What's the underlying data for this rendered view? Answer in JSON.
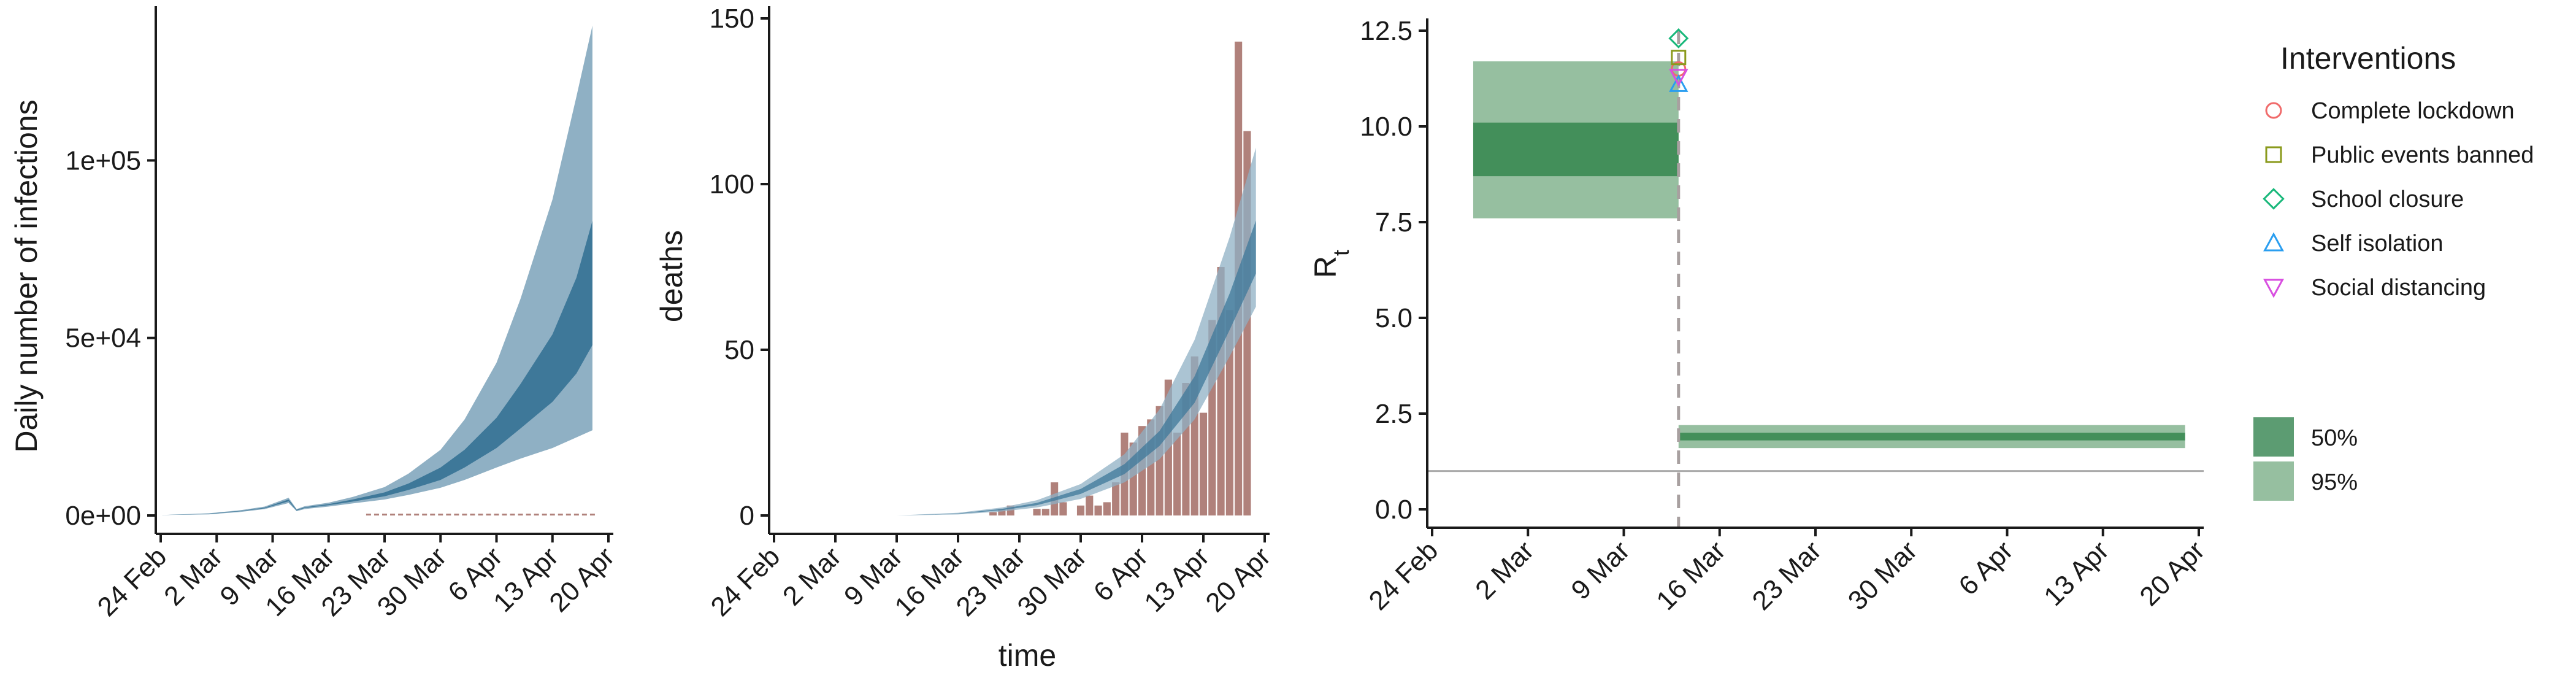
{
  "chart_data": [
    {
      "type": "area",
      "ylabel": "Daily number of infections",
      "xlabel": "",
      "x_ticks": [
        "24 Feb",
        "2 Mar",
        "9 Mar",
        "16 Mar",
        "23 Mar",
        "30 Mar",
        "6 Apr",
        "13 Apr",
        "20 Apr"
      ],
      "x_range": [
        "2020-02-24",
        "2020-04-20"
      ],
      "y_ticks": [
        "0e+00",
        "5e+04",
        "1e+05"
      ],
      "ylim": [
        0,
        140000
      ],
      "colors": {
        "band_95": "#8fb0c4",
        "band_50": "#3e7899",
        "bars": "#b0817b"
      },
      "series": [
        {
          "x": [
            "2020-02-24",
            "2020-03-01",
            "2020-03-05",
            "2020-03-08",
            "2020-03-11",
            "2020-03-12",
            "2020-03-13",
            "2020-03-16",
            "2020-03-19",
            "2020-03-23",
            "2020-03-26",
            "2020-03-30",
            "2020-04-02",
            "2020-04-06",
            "2020-04-09",
            "2020-04-13",
            "2020-04-16",
            "2020-04-18"
          ],
          "lower95": [
            100,
            300,
            1000,
            1800,
            3500,
            1200,
            1800,
            2500,
            3400,
            4500,
            5800,
            7800,
            10000,
            13500,
            16000,
            19000,
            22000,
            24000
          ],
          "lower50": [
            100,
            400,
            1200,
            2000,
            4000,
            1400,
            2100,
            2900,
            3900,
            5400,
            7200,
            10000,
            13500,
            19000,
            24500,
            32000,
            40000,
            48000
          ],
          "upper50": [
            100,
            500,
            1300,
            2200,
            4500,
            1600,
            2300,
            3200,
            4500,
            6500,
            9000,
            13500,
            18500,
            27500,
            37000,
            51000,
            67000,
            83000
          ],
          "upper95": [
            100,
            600,
            1500,
            2500,
            5000,
            1800,
            2600,
            3600,
            5200,
            8000,
            11800,
            18500,
            27000,
            43000,
            61000,
            89000,
            118000,
            138000
          ]
        }
      ],
      "bars": {
        "x_start": "2020-03-21",
        "x_end": "2020-04-18",
        "approx_value": 0
      }
    },
    {
      "type": "bar",
      "xlabel": "time",
      "ylabel": "deaths",
      "x_ticks": [
        "24 Feb",
        "2 Mar",
        "9 Mar",
        "16 Mar",
        "23 Mar",
        "30 Mar",
        "6 Apr",
        "13 Apr",
        "20 Apr"
      ],
      "x_range": [
        "2020-02-24",
        "2020-04-20"
      ],
      "y_ticks": [
        "0",
        "50",
        "100",
        "150"
      ],
      "ylim": [
        0,
        150
      ],
      "bar_dates": [
        "2020-03-20",
        "2020-03-21",
        "2020-03-22",
        "2020-03-23",
        "2020-03-24",
        "2020-03-25",
        "2020-03-26",
        "2020-03-27",
        "2020-03-28",
        "2020-03-29",
        "2020-03-30",
        "2020-03-31",
        "2020-04-01",
        "2020-04-02",
        "2020-04-03",
        "2020-04-04",
        "2020-04-05",
        "2020-04-06",
        "2020-04-07",
        "2020-04-08",
        "2020-04-09",
        "2020-04-10",
        "2020-04-11",
        "2020-04-12",
        "2020-04-13",
        "2020-04-14",
        "2020-04-15",
        "2020-04-16",
        "2020-04-17",
        "2020-04-18"
      ],
      "values": [
        1,
        2,
        3,
        0,
        0,
        2,
        2,
        10,
        4,
        0,
        3,
        6,
        3,
        4,
        10,
        25,
        22,
        27,
        29,
        33,
        41,
        25,
        40,
        48,
        31,
        59,
        75,
        62,
        143,
        116
      ],
      "band_dates": [
        "2020-03-09",
        "2020-03-16",
        "2020-03-21",
        "2020-03-25",
        "2020-03-30",
        "2020-04-04",
        "2020-04-08",
        "2020-04-12",
        "2020-04-16",
        "2020-04-19"
      ],
      "lower95": [
        0,
        0.3,
        1.2,
        2.4,
        5,
        10,
        17,
        29,
        48,
        63
      ],
      "lower50": [
        0,
        0.5,
        1.6,
        3.1,
        6.5,
        12.5,
        21,
        34,
        56,
        73
      ],
      "upper50": [
        0,
        0.6,
        2,
        3.8,
        8,
        15.5,
        25.5,
        42,
        67,
        89
      ],
      "upper95": [
        0,
        0.8,
        2.4,
        4.6,
        9.5,
        18.5,
        32,
        53,
        84,
        111
      ],
      "colors": {
        "band_95": "#8fb0c4",
        "band_50": "#3e7899",
        "bars": "#b0817b"
      }
    },
    {
      "type": "area",
      "ylabel": "Rt",
      "xlabel": "",
      "x_ticks": [
        "24 Feb",
        "2 Mar",
        "9 Mar",
        "16 Mar",
        "23 Mar",
        "30 Mar",
        "6 Apr",
        "13 Apr",
        "20 Apr"
      ],
      "x_range": [
        "2020-02-24",
        "2020-04-20"
      ],
      "y_ticks": [
        "0.0",
        "2.5",
        "5.0",
        "7.5",
        "10.0",
        "12.5"
      ],
      "ylim": [
        0,
        12.5
      ],
      "reference_line": 1,
      "intervention_date": "2020-03-13",
      "segments": [
        {
          "start": "2020-02-27",
          "end": "2020-03-13",
          "lower95": 7.6,
          "lower50": 8.7,
          "upper50": 10.1,
          "upper95": 11.7
        },
        {
          "start": "2020-03-13",
          "end": "2020-04-19",
          "lower95": 1.6,
          "lower50": 1.8,
          "upper50": 2.0,
          "upper95": 2.2
        }
      ],
      "markers": [
        {
          "name": "Complete lockdown",
          "value": 11.5
        },
        {
          "name": "Public events banned",
          "value": 11.8
        },
        {
          "name": "School closure",
          "value": 12.3
        },
        {
          "name": "Self isolation",
          "value": 11.1
        },
        {
          "name": "Social distancing",
          "value": 11.3
        }
      ],
      "colors": {
        "band_95": "#96bfa0",
        "band_50": "#438f5a",
        "reference": "#aaaaaa",
        "dashed": "#a8a0a0"
      }
    }
  ],
  "legend": {
    "title": "Interventions",
    "items": [
      {
        "label": "Complete lockdown",
        "shape": "circle",
        "color": "#f06a6a"
      },
      {
        "label": "Public events banned",
        "shape": "square",
        "color": "#8a9a1c"
      },
      {
        "label": "School closure",
        "shape": "diamond",
        "color": "#18b87a"
      },
      {
        "label": "Self isolation",
        "shape": "triangle-up",
        "color": "#2a9ef0"
      },
      {
        "label": "Social distancing",
        "shape": "triangle-down",
        "color": "#d84fe0"
      }
    ],
    "bands": [
      {
        "label": "50%",
        "color": "#5c9c72"
      },
      {
        "label": "95%",
        "color": "#96bfa0"
      }
    ]
  }
}
